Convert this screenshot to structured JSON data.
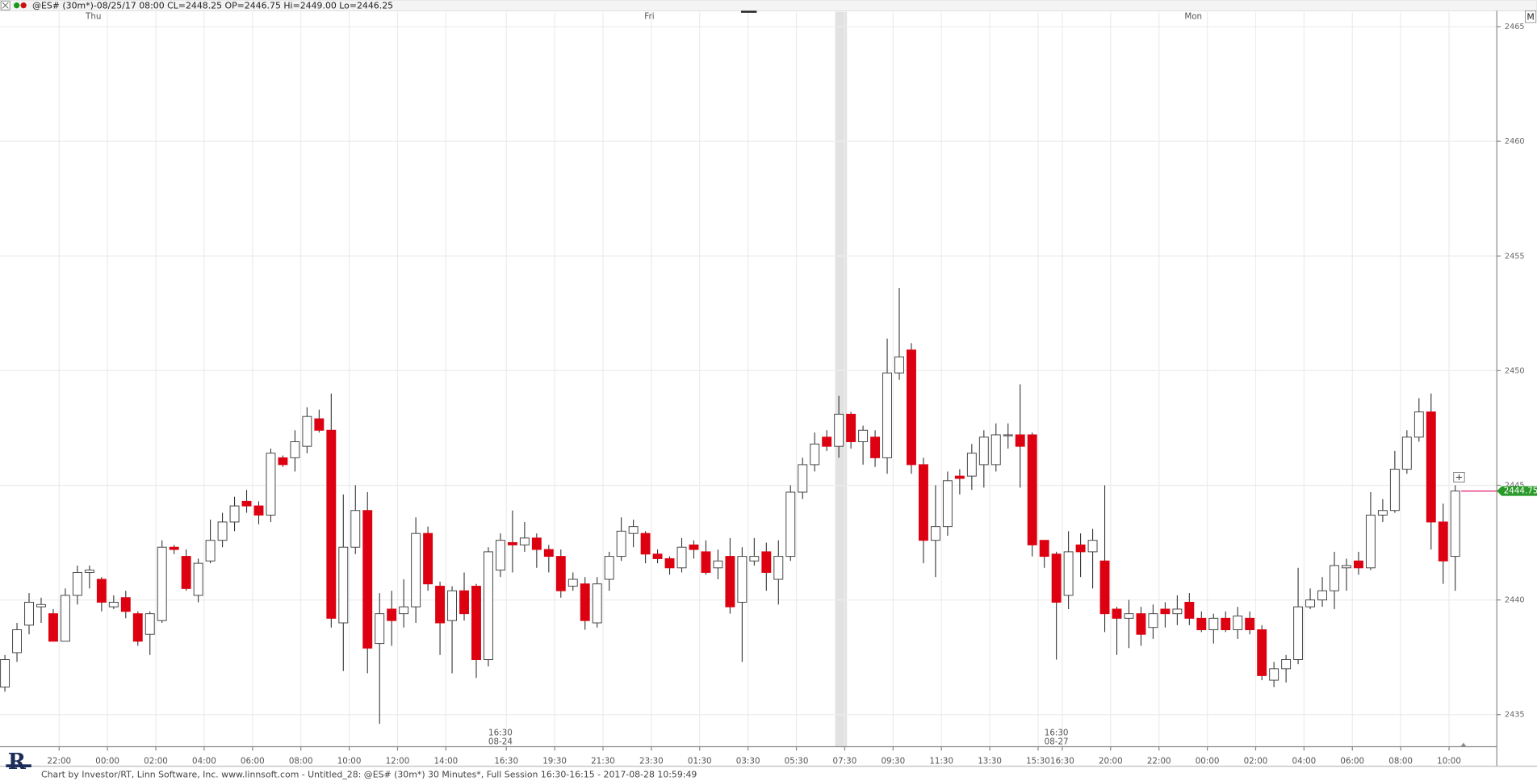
{
  "chart_data": {
    "type": "candlestick",
    "header": "@ES# (30m*)-08/25/17 08:00 CL=2448.25 OP=2446.75 Hi=2449.00 Lo=2446.25",
    "footer": "Chart by Investor/RT, Linn Software, Inc. www.linnsoft.com - Untitled_28: @ES# (30m*) 30 Minutes*, Full Session 16:30-16:15 - 2017-08-28 10:59:49",
    "corner_button": "M",
    "last_value_label": "2444.75",
    "up_color": "#ffffff",
    "down_color": "#dd0011",
    "ylim": [
      2433.6,
      2465.65
    ],
    "yticks": [
      2435,
      2440,
      2445,
      2450,
      2455,
      2460,
      2465
    ],
    "grid": true,
    "categories": [
      null,
      null,
      null,
      null,
      "22:00",
      null,
      null,
      null,
      "00:00",
      null,
      null,
      null,
      "02:00",
      null,
      null,
      null,
      "04:00",
      null,
      null,
      null,
      "06:00",
      null,
      null,
      null,
      "08:00",
      null,
      null,
      null,
      "10:00",
      null,
      null,
      null,
      "12:00",
      null,
      null,
      null,
      "14:00",
      null,
      null,
      null,
      null,
      "16:30",
      null,
      null,
      null,
      "19:30",
      null,
      null,
      null,
      "21:30",
      null,
      null,
      null,
      "23:30",
      null,
      null,
      null,
      "01:30",
      null,
      null,
      null,
      "03:30",
      null,
      null,
      null,
      "05:30",
      null,
      null,
      null,
      "07:30",
      null,
      null,
      null,
      "09:30",
      null,
      null,
      null,
      "11:30",
      null,
      null,
      null,
      "13:30",
      null,
      null,
      null,
      "15:30",
      null,
      "16:30",
      null,
      null,
      null,
      "20:00",
      null,
      null,
      null,
      "22:00",
      null,
      null,
      null,
      "00:00",
      null,
      null,
      null,
      "02:00",
      null,
      null,
      null,
      "04:00",
      null,
      null,
      null,
      "06:00",
      null,
      null,
      null,
      "08:00",
      null,
      null,
      null,
      "10:00",
      null
    ],
    "dates": [
      null,
      null,
      null,
      null,
      null,
      null,
      null,
      null,
      null,
      null,
      null,
      null,
      null,
      null,
      null,
      null,
      null,
      null,
      null,
      null,
      null,
      null,
      null,
      null,
      null,
      null,
      null,
      null,
      null,
      null,
      null,
      null,
      null,
      null,
      null,
      null,
      null,
      null,
      null,
      null,
      null,
      "08-24",
      null,
      null,
      null,
      null,
      null,
      null,
      null,
      null,
      null,
      null,
      null,
      null,
      null,
      null,
      null,
      null,
      null,
      null,
      null,
      null,
      null,
      null,
      null,
      null,
      null,
      null,
      null,
      null,
      null,
      null,
      null,
      null,
      null,
      null,
      null,
      null,
      null,
      null,
      null,
      null,
      null,
      null,
      null,
      null,
      null,
      "08-27",
      null,
      null,
      null,
      null,
      null,
      null,
      null,
      null,
      null,
      null,
      null,
      null,
      null,
      null,
      null,
      null,
      null,
      null,
      null,
      null,
      null,
      null,
      null,
      null,
      null,
      null,
      null,
      null,
      null,
      null,
      null,
      null,
      null
    ],
    "days": [
      null,
      null,
      null,
      null,
      null,
      null,
      null,
      "Thu",
      null,
      null,
      null,
      null,
      null,
      null,
      null,
      null,
      null,
      null,
      null,
      null,
      null,
      null,
      null,
      null,
      null,
      null,
      null,
      null,
      null,
      null,
      null,
      null,
      null,
      null,
      null,
      null,
      null,
      null,
      null,
      null,
      null,
      null,
      null,
      null,
      null,
      null,
      null,
      null,
      null,
      null,
      null,
      null,
      null,
      "Fri",
      null,
      null,
      null,
      null,
      null,
      null,
      null,
      null,
      null,
      null,
      null,
      null,
      null,
      null,
      null,
      null,
      null,
      null,
      null,
      null,
      null,
      null,
      null,
      null,
      null,
      null,
      null,
      null,
      null,
      null,
      null,
      null,
      null,
      null,
      null,
      null,
      null,
      null,
      null,
      null,
      null,
      null,
      null,
      null,
      "Mon",
      null,
      null,
      null,
      null,
      null,
      null,
      null,
      null,
      null,
      null,
      null,
      null,
      null,
      null,
      null,
      null,
      null,
      null,
      null,
      null,
      null,
      null
    ],
    "open": [
      2436.2,
      2437.7,
      2438.9,
      2439.7,
      2439.4,
      2438.2,
      2440.2,
      2441.2,
      2440.9,
      2439.7,
      2440.1,
      2439.4,
      2438.5,
      2439.1,
      2442.3,
      2441.9,
      2440.2,
      2441.7,
      2442.6,
      2443.4,
      2444.3,
      2444.1,
      2443.7,
      2446.2,
      2446.2,
      2446.7,
      2447.9,
      2447.4,
      2439.0,
      2442.3,
      2443.9,
      2438.1,
      2439.6,
      2439.4,
      2439.7,
      2442.9,
      2440.6,
      2439.1,
      2440.4,
      2440.6,
      2437.4,
      2441.3,
      2442.5,
      2442.4,
      2442.7,
      2442.2,
      2441.9,
      2440.6,
      2440.7,
      2439.0,
      2440.9,
      2441.9,
      2442.9,
      2442.9,
      2442.0,
      2441.8,
      2441.4,
      2442.4,
      2442.1,
      2441.4,
      2441.9,
      2439.9,
      2441.7,
      2442.1,
      2440.9,
      2441.9,
      2444.7,
      2445.9,
      2447.1,
      2446.7,
      2448.1,
      2446.9,
      2447.1,
      2446.2,
      2449.9,
      2450.9,
      2445.9,
      2442.6,
      2443.2,
      2445.4,
      2445.4,
      2445.9,
      2445.9,
      2447.2,
      2447.2,
      2447.2,
      2442.6,
      2442.0,
      2440.2,
      2442.4,
      2442.1,
      2441.7,
      2439.6,
      2439.2,
      2439.4,
      2438.8,
      2439.6,
      2439.4,
      2439.9,
      2439.2,
      2438.7,
      2439.2,
      2438.7,
      2439.2,
      2438.7,
      2436.5,
      2437.0,
      2437.4,
      2439.7,
      2440.0,
      2440.4,
      2441.4,
      2441.7,
      2441.4,
      2443.7,
      2443.9,
      2445.7,
      2447.1,
      2448.2,
      2443.4,
      2441.9
    ],
    "high": [
      2437.6,
      2439.0,
      2440.3,
      2440.1,
      2439.6,
      2440.5,
      2441.5,
      2441.5,
      2441.0,
      2440.2,
      2440.4,
      2439.5,
      2439.5,
      2442.6,
      2442.4,
      2442.2,
      2441.8,
      2443.5,
      2443.8,
      2444.5,
      2444.8,
      2444.3,
      2446.6,
      2446.3,
      2447.4,
      2448.4,
      2448.3,
      2449.0,
      2444.6,
      2445.0,
      2444.7,
      2440.3,
      2440.4,
      2440.9,
      2443.6,
      2443.2,
      2440.8,
      2440.6,
      2441.2,
      2440.7,
      2442.3,
      2442.9,
      2443.9,
      2443.4,
      2442.9,
      2442.4,
      2442.2,
      2441.2,
      2441.0,
      2441.0,
      2442.1,
      2443.6,
      2443.5,
      2443.0,
      2442.2,
      2441.9,
      2442.7,
      2442.6,
      2442.6,
      2442.2,
      2442.7,
      2442.3,
      2442.7,
      2442.5,
      2442.6,
      2445.0,
      2446.2,
      2447.3,
      2447.4,
      2448.9,
      2448.2,
      2447.6,
      2447.4,
      2451.4,
      2453.6,
      2451.2,
      2446.2,
      2445.0,
      2445.6,
      2445.7,
      2446.8,
      2447.4,
      2447.7,
      2447.7,
      2449.4,
      2447.3,
      2442.6,
      2442.1,
      2443.0,
      2442.9,
      2443.1,
      2445.0,
      2439.7,
      2440.0,
      2439.7,
      2439.8,
      2439.9,
      2440.2,
      2440.3,
      2439.5,
      2439.4,
      2439.5,
      2439.7,
      2439.5,
      2438.9,
      2437.3,
      2437.6,
      2441.4,
      2440.5,
      2441.0,
      2442.1,
      2441.8,
      2442.1,
      2444.7,
      2444.4,
      2446.5,
      2447.4,
      2448.8,
      2449.0,
      2444.2,
      2445.0
    ],
    "low": [
      2436.0,
      2437.3,
      2438.5,
      2439.0,
      2438.2,
      2438.2,
      2439.8,
      2440.5,
      2439.5,
      2439.6,
      2439.2,
      2438.0,
      2437.6,
      2439.0,
      2442.0,
      2440.4,
      2439.9,
      2441.6,
      2442.3,
      2443.0,
      2443.8,
      2443.3,
      2443.4,
      2445.8,
      2445.6,
      2446.4,
      2447.3,
      2438.8,
      2436.9,
      2442.0,
      2436.8,
      2434.6,
      2438.0,
      2438.8,
      2439.0,
      2440.4,
      2437.6,
      2436.8,
      2439.1,
      2436.6,
      2437.1,
      2441.0,
      2441.2,
      2442.1,
      2441.4,
      2441.2,
      2440.1,
      2440.4,
      2438.7,
      2438.8,
      2440.4,
      2441.7,
      2442.3,
      2441.6,
      2441.6,
      2441.1,
      2441.2,
      2441.8,
      2441.1,
      2440.9,
      2439.4,
      2437.3,
      2441.5,
      2440.4,
      2439.8,
      2441.7,
      2444.4,
      2445.6,
      2446.5,
      2446.2,
      2446.6,
      2445.9,
      2445.8,
      2445.5,
      2449.6,
      2445.5,
      2441.6,
      2441.0,
      2442.8,
      2444.6,
      2444.8,
      2444.9,
      2445.6,
      2446.6,
      2444.9,
      2441.9,
      2441.4,
      2437.4,
      2439.6,
      2441.0,
      2440.5,
      2438.6,
      2437.6,
      2437.9,
      2438.0,
      2438.3,
      2438.8,
      2438.9,
      2438.9,
      2438.6,
      2438.1,
      2438.6,
      2438.3,
      2438.5,
      2436.5,
      2436.2,
      2436.4,
      2437.2,
      2439.6,
      2439.7,
      2439.6,
      2440.4,
      2441.1,
      2441.3,
      2443.4,
      2443.8,
      2445.5,
      2446.9,
      2442.2,
      2440.7,
      2440.4
    ],
    "close": [
      2437.4,
      2438.7,
      2439.9,
      2439.8,
      2438.2,
      2440.2,
      2441.2,
      2441.3,
      2439.9,
      2439.9,
      2439.5,
      2438.2,
      2439.4,
      2442.3,
      2442.2,
      2440.5,
      2441.6,
      2442.6,
      2443.4,
      2444.1,
      2444.1,
      2443.7,
      2446.4,
      2445.9,
      2446.9,
      2448.0,
      2447.4,
      2439.2,
      2442.3,
      2443.9,
      2437.9,
      2439.4,
      2439.1,
      2439.7,
      2442.9,
      2440.7,
      2439.0,
      2440.4,
      2439.4,
      2437.4,
      2442.1,
      2442.6,
      2442.4,
      2442.7,
      2442.2,
      2441.9,
      2440.4,
      2440.9,
      2439.1,
      2440.7,
      2441.9,
      2443.0,
      2443.2,
      2442.0,
      2441.8,
      2441.4,
      2442.3,
      2442.2,
      2441.2,
      2441.7,
      2439.7,
      2441.9,
      2441.9,
      2441.2,
      2441.9,
      2444.7,
      2445.9,
      2446.8,
      2446.7,
      2448.1,
      2446.9,
      2447.4,
      2446.2,
      2449.9,
      2450.6,
      2445.9,
      2442.6,
      2443.2,
      2445.2,
      2445.3,
      2446.4,
      2447.1,
      2447.2,
      2447.2,
      2446.7,
      2442.4,
      2441.9,
      2439.9,
      2442.1,
      2442.1,
      2442.6,
      2439.4,
      2439.2,
      2439.4,
      2438.5,
      2439.4,
      2439.4,
      2439.6,
      2439.2,
      2438.7,
      2439.2,
      2438.7,
      2439.3,
      2438.7,
      2436.7,
      2437.0,
      2437.4,
      2439.7,
      2440.0,
      2440.4,
      2441.5,
      2441.5,
      2441.4,
      2443.7,
      2443.9,
      2445.7,
      2447.1,
      2448.2,
      2443.4,
      2441.7,
      2444.75
    ]
  }
}
